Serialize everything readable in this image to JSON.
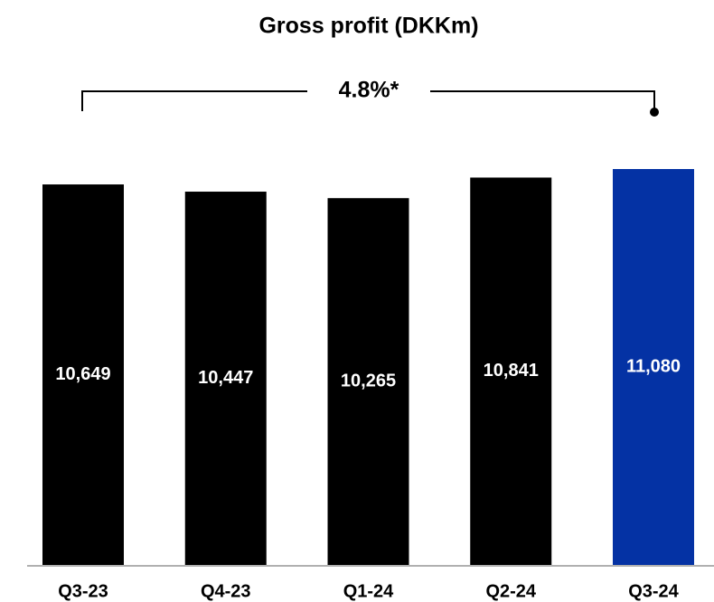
{
  "chart_data": {
    "type": "bar",
    "title": "Gross profit (DKKm)",
    "categories": [
      "Q3-23",
      "Q4-23",
      "Q1-24",
      "Q2-24",
      "Q3-24"
    ],
    "values": [
      10649,
      10447,
      10265,
      10841,
      11080
    ],
    "value_labels": [
      "10,649",
      "10,447",
      "10,265",
      "10,841",
      "11,080"
    ],
    "colors": [
      "#000000",
      "#000000",
      "#000000",
      "#000000",
      "#0432a4"
    ],
    "annotation": "4.8%*"
  }
}
